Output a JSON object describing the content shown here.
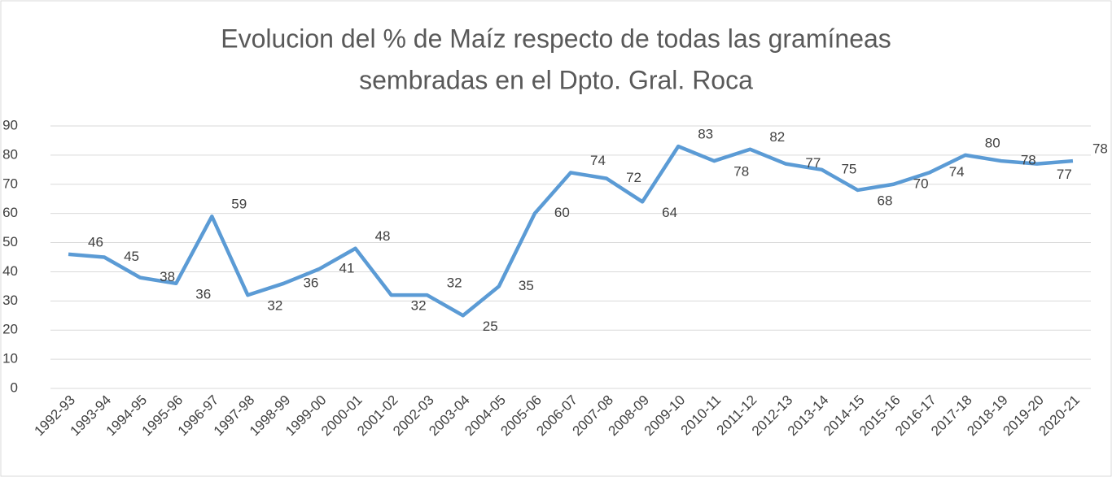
{
  "chart_data": {
    "type": "line",
    "title": [
      "Evolucion del % de Maíz respecto de todas las gramíneas",
      "sembradas en el Dpto. Gral. Roca"
    ],
    "categories": [
      "1992-93",
      "1993-94",
      "1994-95",
      "1995-96",
      "1996-97",
      "1997-98",
      "1998-99",
      "1999-00",
      "2000-01",
      "2001-02",
      "2002-03",
      "2003-04",
      "2004-05",
      "2005-06",
      "2006-07",
      "2007-08",
      "2008-09",
      "2009-10",
      "2010-11",
      "2011-12",
      "2012-13",
      "2013-14",
      "2014-15",
      "2015-16",
      "2016-17",
      "2017-18",
      "2018-19",
      "2019-20",
      "2020-21"
    ],
    "series": [
      {
        "name": "Maíz",
        "color": "#5b9bd5",
        "values": [
          46,
          45,
          38,
          36,
          59,
          32,
          36,
          41,
          48,
          32,
          32,
          25,
          35,
          60,
          74,
          72,
          64,
          83,
          78,
          82,
          77,
          75,
          68,
          70,
          74,
          80,
          78,
          77,
          78
        ]
      }
    ],
    "ylim": [
      0,
      90
    ],
    "yticks": [
      0,
      10,
      20,
      30,
      40,
      50,
      60,
      70,
      80,
      90
    ],
    "grid": true
  }
}
